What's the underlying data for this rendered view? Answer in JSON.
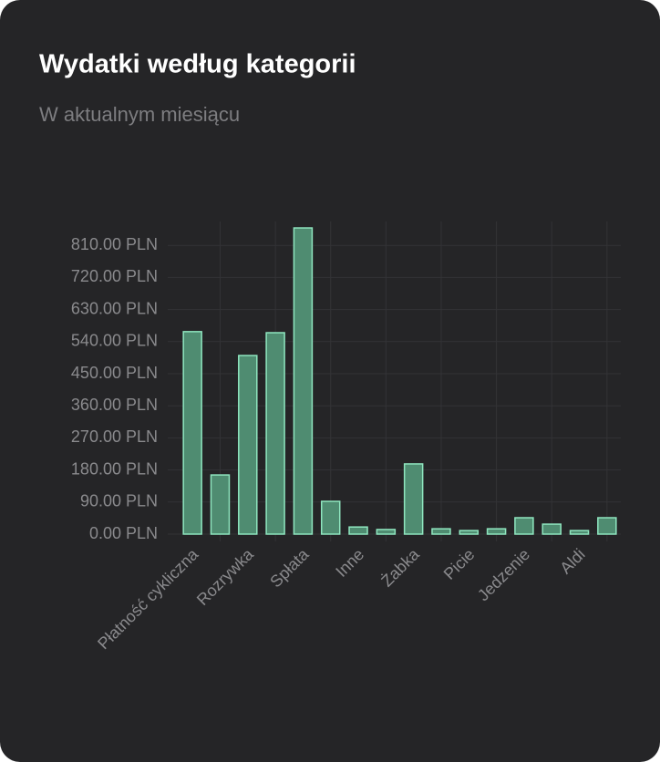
{
  "chart_data": {
    "type": "bar",
    "title": "Wydatki według kategorii",
    "subtitle": "W aktualnym miesiącu",
    "categories": [
      "Płatność cykliczna",
      null,
      "Rozrywka",
      null,
      "Spłata",
      null,
      "Inne",
      null,
      "Żabka",
      null,
      "Picie",
      null,
      "Jedzenie",
      null,
      "Aldi",
      null
    ],
    "values": [
      568,
      166,
      501,
      565,
      859,
      92,
      20,
      13,
      197,
      15,
      10,
      15,
      46,
      28,
      10,
      46
    ],
    "color": "#4f8c71",
    "border_color": "#8fe6bf",
    "ylim": [
      0,
      877
    ],
    "yticks": [
      {
        "value": 0,
        "label": "0.00 PLN"
      },
      {
        "value": 90,
        "label": "90.00 PLN"
      },
      {
        "value": 180,
        "label": "180.00 PLN"
      },
      {
        "value": 270,
        "label": "270.00 PLN"
      },
      {
        "value": 360,
        "label": "360.00 PLN"
      },
      {
        "value": 450,
        "label": "450.00 PLN"
      },
      {
        "value": 540,
        "label": "540.00 PLN"
      },
      {
        "value": 630,
        "label": "630.00 PLN"
      },
      {
        "value": 720,
        "label": "720.00 PLN"
      },
      {
        "value": 810,
        "label": "810.00 PLN"
      }
    ],
    "grid": true
  }
}
